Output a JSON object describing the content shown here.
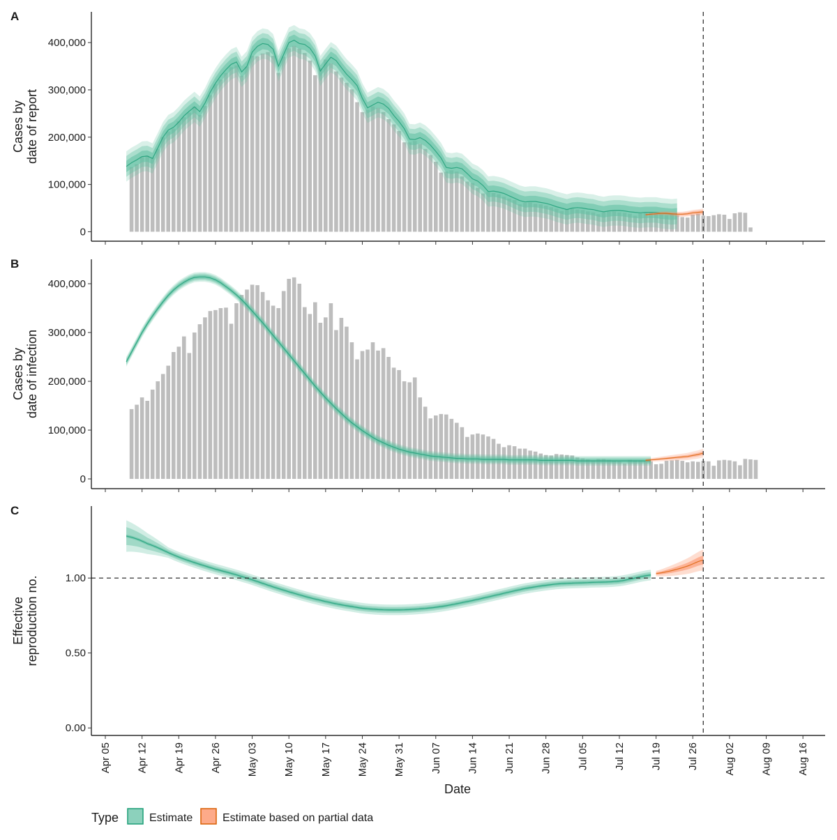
{
  "figure": {
    "xlabel": "Date",
    "legend": {
      "title": "Type",
      "items": [
        {
          "label": "Estimate",
          "fill": "#66c2a5",
          "stroke": "#1b9e77"
        },
        {
          "label": "Estimate based on partial data",
          "fill": "#fc8d62",
          "stroke": "#d95f02"
        }
      ]
    },
    "date_axis": {
      "start": "2020-04-05",
      "end": "2020-08-19",
      "tick_labels": [
        "Apr 05",
        "Apr 12",
        "Apr 19",
        "Apr 26",
        "May 03",
        "May 10",
        "May 17",
        "May 24",
        "May 31",
        "Jun 07",
        "Jun 14",
        "Jun 21",
        "Jun 28",
        "Jul 05",
        "Jul 12",
        "Jul 19",
        "Jul 26",
        "Aug 02",
        "Aug 09",
        "Aug 16"
      ],
      "tick_day_offsets": [
        0,
        7,
        14,
        21,
        28,
        35,
        42,
        49,
        56,
        63,
        70,
        77,
        84,
        91,
        98,
        105,
        112,
        119,
        126,
        133
      ]
    },
    "report_date_offset": 114,
    "estimate_end_offset": 104,
    "partial_start_offset": 106,
    "colors": {
      "bar": "#bdbdbd",
      "estimate_fill": "#66c2a5",
      "estimate_line": "#1b9e77",
      "partial_fill": "#fc8d62",
      "partial_line": "#d95f02",
      "dashed": "#333333"
    }
  },
  "chart_data": [
    {
      "panel": "A",
      "type": "bar",
      "ylabel_line1": "Cases by",
      "ylabel_line2": "date of report",
      "ylim": [
        -20000,
        465000
      ],
      "yticks": [
        0,
        100000,
        200000,
        300000,
        400000
      ],
      "ytick_labels": [
        "0",
        "100,000",
        "200,000",
        "300,000",
        "400,000"
      ],
      "bars_start_offset": 5,
      "bars": [
        137000,
        143000,
        158000,
        161000,
        157000,
        175000,
        200000,
        212000,
        218000,
        234000,
        242000,
        252000,
        265000,
        247000,
        266000,
        289000,
        312000,
        322000,
        336000,
        348000,
        352000,
        330000,
        349000,
        372000,
        371000,
        377000,
        380000,
        372000,
        336000,
        370000,
        388000,
        393000,
        387000,
        378000,
        362000,
        331000,
        346000,
        364000,
        356000,
        339000,
        326000,
        315000,
        301000,
        274000,
        253000,
        258000,
        265000,
        262000,
        253000,
        238000,
        227000,
        213000,
        189000,
        189000,
        192000,
        186000,
        175000,
        162000,
        148000,
        125000,
        127000,
        130000,
        127000,
        117000,
        106000,
        103000,
        93000,
        81000,
        84000,
        82000,
        79000,
        74000,
        70000,
        67000,
        58000,
        61000,
        62000,
        59000,
        58000,
        55000,
        52000,
        49000,
        44000,
        48000,
        49000,
        47000,
        46000,
        43000,
        41000,
        37000,
        41000,
        42000,
        43000,
        41000,
        40000,
        38000,
        34000,
        39000,
        40000,
        41000,
        39000,
        37000,
        35000,
        36000,
        35000,
        31000,
        30000,
        36000,
        38000,
        34000,
        33000,
        35000,
        37000,
        36000,
        27000,
        39000,
        41000,
        40000,
        9000
      ],
      "estimate_median": [
        138000,
        146000,
        152000,
        159000,
        160000,
        155000,
        177000,
        200000,
        215000,
        221000,
        232000,
        245000,
        255000,
        264000,
        254000,
        272000,
        295000,
        314000,
        330000,
        343000,
        354000,
        359000,
        338000,
        350000,
        380000,
        392000,
        398000,
        396000,
        386000,
        350000,
        375000,
        400000,
        405000,
        398000,
        396000,
        388000,
        372000,
        340000,
        355000,
        369000,
        362000,
        347000,
        333000,
        322000,
        309000,
        282000,
        262000,
        268000,
        274000,
        270000,
        261000,
        246000,
        233000,
        218000,
        196000,
        195000,
        199000,
        193000,
        183000,
        170000,
        156000,
        136000,
        134000,
        136000,
        133000,
        123000,
        112000,
        107000,
        98000,
        85000,
        86000,
        84000,
        81000,
        76000,
        71000,
        66000,
        63000,
        64000,
        64000,
        62000,
        60000,
        57000,
        53000,
        50000,
        47000,
        50000,
        51000,
        50000,
        48000,
        47000,
        44000,
        42000,
        44000,
        45000,
        45000,
        44000,
        42000,
        41000,
        40000,
        41000,
        41000,
        41000,
        39000,
        38000,
        37000,
        38000
      ],
      "partial_median": [
        36000,
        37000,
        38000,
        39000,
        39000,
        38000,
        37000,
        37000,
        38000,
        40000,
        41000,
        42000
      ],
      "estimate_band": [
        12000,
        22000,
        32000
      ],
      "partial_band": [
        4000,
        7000
      ]
    },
    {
      "panel": "B",
      "type": "bar",
      "ylabel_line1": "Cases by",
      "ylabel_line2": "date of infection",
      "ylim": [
        -20000,
        450000
      ],
      "yticks": [
        0,
        100000,
        200000,
        300000,
        400000
      ],
      "ytick_labels": [
        "0",
        "100,000",
        "200,000",
        "300,000",
        "400,000"
      ],
      "bars_start_offset": 5,
      "bars": [
        143000,
        152000,
        167000,
        160000,
        183000,
        200000,
        215000,
        232000,
        260000,
        271000,
        292000,
        258000,
        300000,
        317000,
        331000,
        344000,
        346000,
        350000,
        351000,
        318000,
        360000,
        377000,
        388000,
        398000,
        397000,
        383000,
        366000,
        355000,
        350000,
        385000,
        410000,
        413000,
        400000,
        352000,
        338000,
        362000,
        320000,
        331000,
        360000,
        305000,
        330000,
        312000,
        280000,
        245000,
        262000,
        265000,
        280000,
        263000,
        268000,
        250000,
        228000,
        223000,
        200000,
        198000,
        208000,
        167000,
        148000,
        124000,
        130000,
        133000,
        132000,
        123000,
        115000,
        106000,
        86000,
        91000,
        93000,
        91000,
        87000,
        82000,
        72000,
        65000,
        69000,
        67000,
        62000,
        62000,
        58000,
        56000,
        52000,
        49000,
        48000,
        51000,
        50000,
        49000,
        48000,
        44000,
        42000,
        40000,
        38000,
        41000,
        41000,
        39000,
        37000,
        36000,
        32000,
        39000,
        38000,
        38000,
        37000,
        36000,
        30000,
        31000,
        37000,
        38000,
        39000,
        37000,
        34000,
        36000,
        35000,
        37000,
        36000,
        27000,
        38000,
        39000,
        38000,
        36000,
        28000,
        41000,
        40000,
        39000
      ],
      "estimate_median": [
        240000,
        260000,
        280000,
        300000,
        318000,
        334000,
        349000,
        363000,
        376000,
        387000,
        396000,
        403000,
        409000,
        413000,
        414000,
        414000,
        412000,
        408000,
        402000,
        394000,
        386000,
        377000,
        367000,
        356000,
        344000,
        332000,
        320000,
        307000,
        294000,
        281000,
        268000,
        255000,
        242000,
        229000,
        216000,
        203000,
        190000,
        178000,
        166000,
        155000,
        144000,
        134000,
        124000,
        115000,
        107000,
        99000,
        92000,
        85000,
        79000,
        74000,
        69000,
        65000,
        61000,
        58000,
        55000,
        53000,
        51000,
        49000,
        47000,
        46000,
        45000,
        44000,
        43000,
        42000,
        42000,
        41000,
        41000,
        41000,
        40000,
        40000,
        40000,
        40000,
        40000,
        39000,
        39000,
        39000,
        39000,
        39000,
        39000,
        38000,
        38000,
        38000,
        38000,
        38000,
        38000,
        38000,
        37000,
        37000,
        37000,
        37000,
        37000,
        37000,
        37000,
        37000,
        37000,
        37000,
        37000,
        37000,
        37000,
        37000,
        37000
      ],
      "partial_median": [
        38000,
        39000,
        40000,
        41000,
        42000,
        43000,
        44000,
        45000,
        46000,
        48000,
        50000,
        53000
      ],
      "estimate_band": [
        4000,
        7000,
        10000
      ],
      "partial_band": [
        4000,
        9000
      ]
    },
    {
      "panel": "C",
      "type": "line",
      "ylabel_line1": "Effective",
      "ylabel_line2": "reproduction no.",
      "ylim": [
        -0.05,
        1.48
      ],
      "yticks": [
        0.0,
        0.5,
        1.0
      ],
      "ytick_labels": [
        "0.00",
        "0.50",
        "1.00"
      ],
      "hline": 1.0,
      "estimate_knots": [
        [
          4,
          1.28
        ],
        [
          8,
          1.23
        ],
        [
          14,
          1.14
        ],
        [
          20,
          1.07
        ],
        [
          26,
          1.01
        ],
        [
          33,
          0.93
        ],
        [
          40,
          0.86
        ],
        [
          47,
          0.81
        ],
        [
          52,
          0.79
        ],
        [
          58,
          0.79
        ],
        [
          64,
          0.81
        ],
        [
          70,
          0.85
        ],
        [
          75,
          0.89
        ],
        [
          80,
          0.93
        ],
        [
          86,
          0.96
        ],
        [
          92,
          0.97
        ],
        [
          98,
          0.98
        ],
        [
          104,
          1.02
        ]
      ],
      "partial_knots": [
        [
          105,
          1.03
        ],
        [
          108,
          1.05
        ],
        [
          111,
          1.08
        ],
        [
          114,
          1.12
        ]
      ],
      "estimate_band": [
        0.01,
        0.02,
        0.035
      ],
      "partial_band": [
        0.03,
        0.07
      ]
    }
  ]
}
